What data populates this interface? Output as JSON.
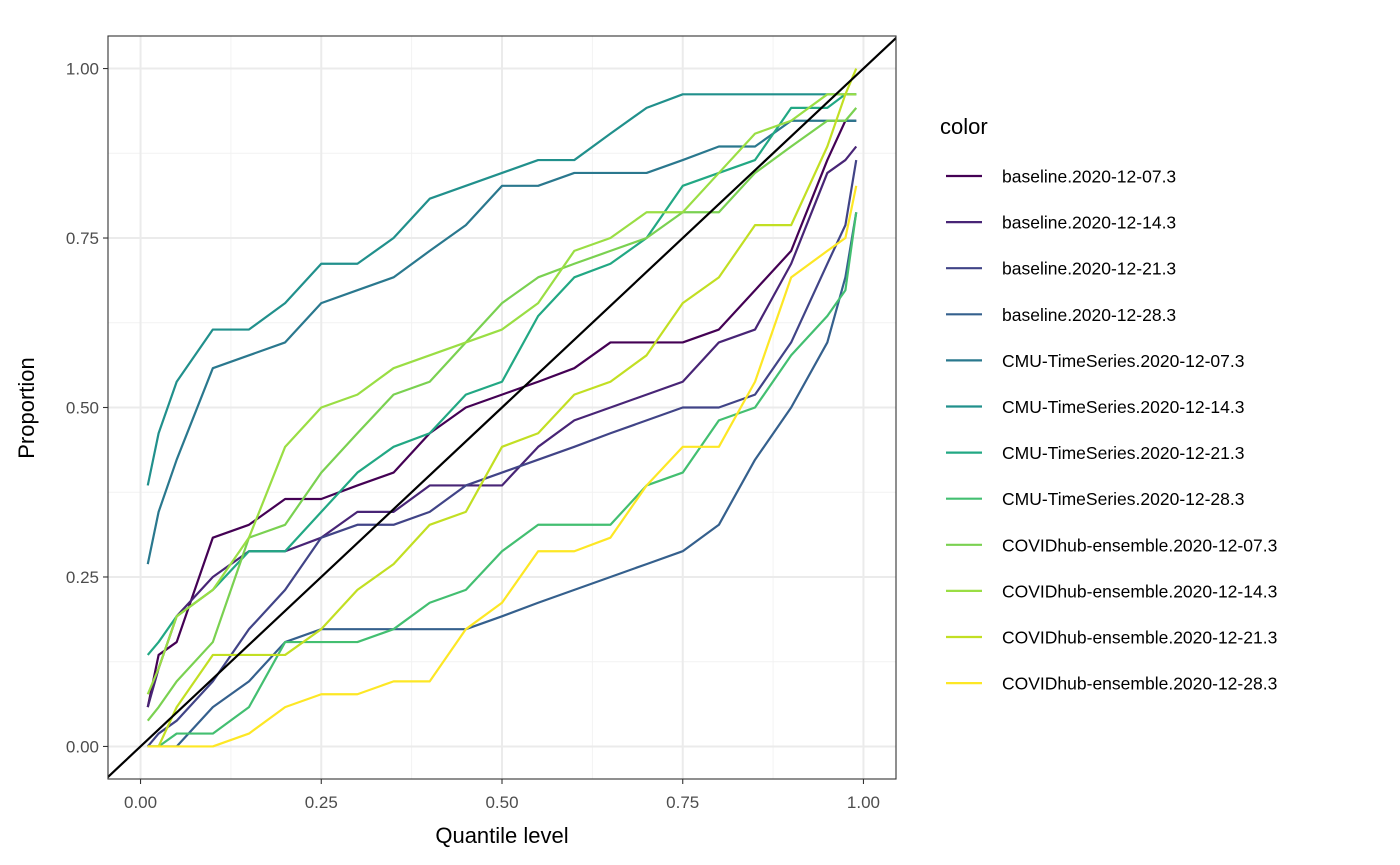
{
  "chart_data": {
    "type": "line",
    "title": "",
    "xlabel": "Quantile level",
    "ylabel": "Proportion",
    "xlim": [
      -0.045,
      1.045
    ],
    "ylim": [
      -0.048,
      1.048
    ],
    "x_ticks": [
      0,
      0.25,
      0.5,
      0.75,
      1
    ],
    "x_tick_labels": [
      "0.00",
      "0.25",
      "0.50",
      "0.75",
      "1.00"
    ],
    "y_ticks": [
      0,
      0.25,
      0.5,
      0.75,
      1
    ],
    "y_tick_labels": [
      "0.00",
      "0.25",
      "0.50",
      "0.75",
      "1.00"
    ],
    "grid": true,
    "legend_title": "color",
    "legend_position": "right",
    "x": [
      0.01,
      0.025,
      0.05,
      0.1,
      0.15,
      0.2,
      0.25,
      0.3,
      0.35,
      0.4,
      0.45,
      0.5,
      0.55,
      0.6,
      0.65,
      0.7,
      0.75,
      0.8,
      0.85,
      0.9,
      0.95,
      0.975,
      0.99
    ],
    "reference_line": {
      "slope": 1,
      "intercept": 0,
      "color": "#000000"
    },
    "series": [
      {
        "name": "baseline.2020-12-07.3",
        "color": "#440154",
        "values": [
          0.058,
          0.135,
          0.154,
          0.308,
          0.327,
          0.365,
          0.365,
          0.385,
          0.404,
          0.462,
          0.5,
          0.519,
          0.538,
          0.558,
          0.596,
          0.596,
          0.596,
          0.615,
          0.673,
          0.731,
          0.865,
          0.923,
          0.923
        ]
      },
      {
        "name": "baseline.2020-12-14.3",
        "color": "#482576",
        "values": [
          0.058,
          0.115,
          0.192,
          0.25,
          0.288,
          0.288,
          0.308,
          0.346,
          0.346,
          0.385,
          0.385,
          0.385,
          0.442,
          0.481,
          0.5,
          0.519,
          0.538,
          0.596,
          0.615,
          0.712,
          0.846,
          0.865,
          0.885
        ]
      },
      {
        "name": "baseline.2020-12-21.3",
        "color": "#414487",
        "values": [
          0.0,
          0.019,
          0.038,
          0.096,
          0.173,
          0.231,
          0.308,
          0.327,
          0.327,
          0.346,
          0.385,
          0.404,
          0.423,
          0.442,
          0.462,
          0.481,
          0.5,
          0.5,
          0.519,
          0.596,
          0.712,
          0.769,
          0.865
        ]
      },
      {
        "name": "baseline.2020-12-28.3",
        "color": "#35608D",
        "values": [
          0.0,
          0.0,
          0.0,
          0.058,
          0.096,
          0.154,
          0.173,
          0.173,
          0.173,
          0.173,
          0.173,
          0.192,
          0.212,
          0.231,
          0.25,
          0.269,
          0.288,
          0.327,
          0.423,
          0.5,
          0.596,
          0.692,
          0.788
        ]
      },
      {
        "name": "CMU-TimeSeries.2020-12-07.3",
        "color": "#2A788E",
        "values": [
          0.269,
          0.346,
          0.423,
          0.558,
          0.577,
          0.596,
          0.654,
          0.673,
          0.692,
          0.731,
          0.769,
          0.827,
          0.827,
          0.846,
          0.846,
          0.846,
          0.865,
          0.885,
          0.885,
          0.923,
          0.923,
          0.923,
          0.923
        ]
      },
      {
        "name": "CMU-TimeSeries.2020-12-14.3",
        "color": "#21908C",
        "values": [
          0.385,
          0.462,
          0.538,
          0.615,
          0.615,
          0.654,
          0.712,
          0.712,
          0.75,
          0.808,
          0.827,
          0.846,
          0.865,
          0.865,
          0.904,
          0.942,
          0.962,
          0.962,
          0.962,
          0.962,
          0.962,
          0.962,
          0.962
        ]
      },
      {
        "name": "CMU-TimeSeries.2020-12-21.3",
        "color": "#22A884",
        "values": [
          0.135,
          0.154,
          0.192,
          0.231,
          0.288,
          0.288,
          0.346,
          0.404,
          0.442,
          0.462,
          0.519,
          0.538,
          0.635,
          0.692,
          0.712,
          0.75,
          0.827,
          0.846,
          0.865,
          0.942,
          0.942,
          0.962,
          0.962
        ]
      },
      {
        "name": "CMU-TimeSeries.2020-12-28.3",
        "color": "#43BF71",
        "values": [
          0.0,
          0.0,
          0.019,
          0.019,
          0.058,
          0.154,
          0.154,
          0.154,
          0.173,
          0.212,
          0.231,
          0.288,
          0.327,
          0.327,
          0.327,
          0.385,
          0.404,
          0.481,
          0.5,
          0.577,
          0.635,
          0.673,
          0.788
        ]
      },
      {
        "name": "COVIDhub-ensemble.2020-12-07.3",
        "color": "#7AD151",
        "values": [
          0.038,
          0.058,
          0.096,
          0.154,
          0.308,
          0.327,
          0.404,
          0.462,
          0.519,
          0.538,
          0.596,
          0.654,
          0.692,
          0.712,
          0.731,
          0.75,
          0.788,
          0.788,
          0.846,
          0.885,
          0.923,
          0.923,
          0.942
        ]
      },
      {
        "name": "COVIDhub-ensemble.2020-12-14.3",
        "color": "#9ADE44",
        "values": [
          0.077,
          0.115,
          0.192,
          0.231,
          0.308,
          0.442,
          0.5,
          0.519,
          0.558,
          0.577,
          0.596,
          0.615,
          0.654,
          0.731,
          0.75,
          0.788,
          0.788,
          0.846,
          0.904,
          0.923,
          0.962,
          0.962,
          0.962
        ]
      },
      {
        "name": "COVIDhub-ensemble.2020-12-21.3",
        "color": "#C2DF23",
        "values": [
          0.0,
          0.0,
          0.058,
          0.135,
          0.135,
          0.135,
          0.173,
          0.231,
          0.269,
          0.327,
          0.346,
          0.442,
          0.462,
          0.519,
          0.538,
          0.577,
          0.654,
          0.692,
          0.769,
          0.769,
          0.885,
          0.962,
          1.0
        ]
      },
      {
        "name": "COVIDhub-ensemble.2020-12-28.3",
        "color": "#FDE725",
        "values": [
          0.0,
          0.0,
          0.0,
          0.0,
          0.019,
          0.058,
          0.077,
          0.077,
          0.096,
          0.096,
          0.173,
          0.212,
          0.288,
          0.288,
          0.308,
          0.385,
          0.442,
          0.442,
          0.538,
          0.692,
          0.731,
          0.75,
          0.827
        ]
      }
    ]
  }
}
